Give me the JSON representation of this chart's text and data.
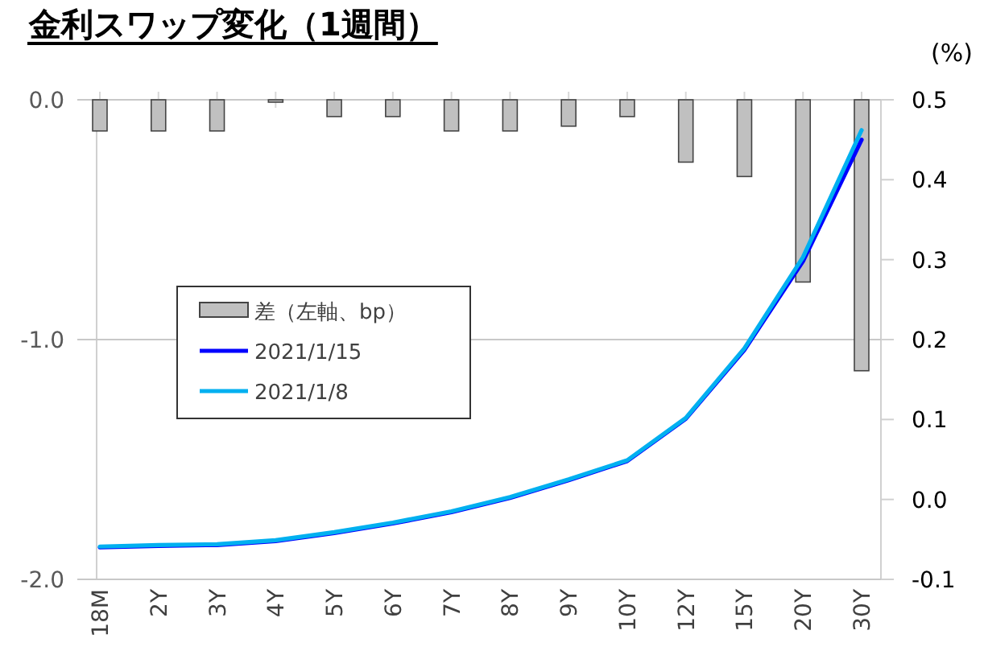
{
  "chart_data": {
    "type": "bar",
    "title": "金利スワップ変化（1週間）",
    "y2label": "(%)",
    "categories": [
      "18M",
      "2Y",
      "3Y",
      "4Y",
      "5Y",
      "6Y",
      "7Y",
      "8Y",
      "9Y",
      "10Y",
      "12Y",
      "15Y",
      "20Y",
      "30Y"
    ],
    "series": [
      {
        "name": "差（左軸、bp）",
        "color": "#c0c0c0",
        "values": [
          -0.13,
          -0.13,
          -0.13,
          -0.01,
          -0.07,
          -0.07,
          -0.13,
          -0.13,
          -0.11,
          -0.07,
          -0.26,
          -0.32,
          -0.76,
          -1.13
        ]
      },
      {
        "name": "2021/1/15",
        "type": "line",
        "axis": "y2",
        "color": "#0000ff",
        "values": [
          -0.06,
          -0.058,
          -0.057,
          -0.052,
          -0.042,
          -0.03,
          -0.016,
          0.002,
          0.024,
          0.048,
          0.101,
          0.187,
          0.298,
          0.45
        ]
      },
      {
        "name": "2021/1/8",
        "type": "line",
        "axis": "y2",
        "color": "#00b0f0",
        "values": [
          -0.059,
          -0.057,
          -0.056,
          -0.051,
          -0.041,
          -0.029,
          -0.015,
          0.003,
          0.025,
          0.049,
          0.102,
          0.189,
          0.303,
          0.462
        ]
      }
    ],
    "ylim": [
      -2,
      0
    ],
    "yticks": [
      {
        "value": 0,
        "label": "0.0"
      },
      {
        "value": -1,
        "label": "-1.0"
      },
      {
        "value": -2,
        "label": "-2.0"
      }
    ],
    "y2lim": [
      -0.1,
      0.5
    ],
    "y2ticks": [
      {
        "value": 0.5,
        "label": "0.5"
      },
      {
        "value": 0.4,
        "label": "0.4"
      },
      {
        "value": 0.3,
        "label": "0.3"
      },
      {
        "value": 0.2,
        "label": "0.2"
      },
      {
        "value": 0.1,
        "label": "0.1"
      },
      {
        "value": 0,
        "label": "0.0"
      },
      {
        "value": -0.1,
        "label": "-0.1"
      }
    ],
    "grid": "y",
    "legend": "left"
  }
}
